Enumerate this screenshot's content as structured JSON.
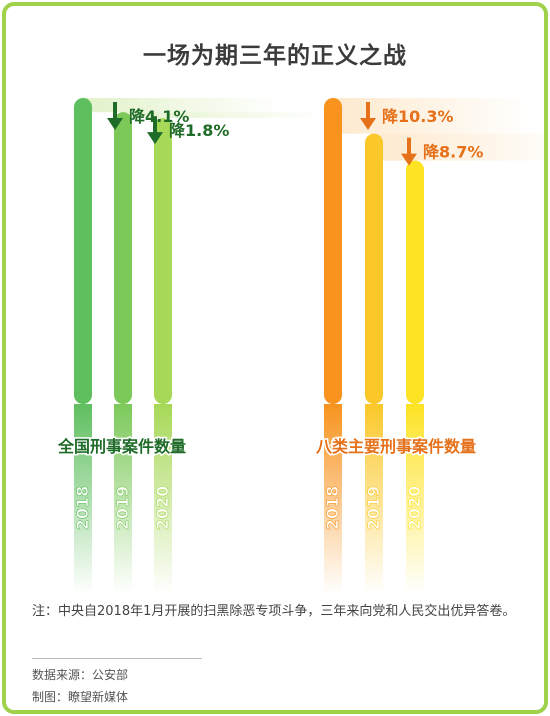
{
  "title": "一场为期三年的正义之战",
  "chart_data": [
    {
      "type": "bar",
      "title": "全国刑事案件数量",
      "categories": [
        "2018",
        "2019",
        "2020"
      ],
      "values": [
        100,
        95.9,
        94.2
      ],
      "annotations": [
        "降4.1%",
        "降1.8%"
      ],
      "colors": [
        "#5fbf5f",
        "#7cc95a",
        "#a7d857"
      ],
      "label_color": "#1f6b28",
      "ylim": [
        0,
        100
      ]
    },
    {
      "type": "bar",
      "title": "八类主要刑事案件数量",
      "categories": [
        "2018",
        "2019",
        "2020"
      ],
      "values": [
        100,
        89.7,
        81.9
      ],
      "annotations": [
        "降10.3%",
        "降8.7%"
      ],
      "colors": [
        "#f7931e",
        "#fbc829",
        "#fde324"
      ],
      "label_color": "#e5711a",
      "ylim": [
        0,
        100
      ]
    }
  ],
  "footer": {
    "note": "注：中央自2018年1月开展的扫黑除恶专项斗争，三年来向党和人民交出优异答卷。",
    "source": "数据来源：公安部",
    "credit": "制图：瞭望新媒体"
  }
}
